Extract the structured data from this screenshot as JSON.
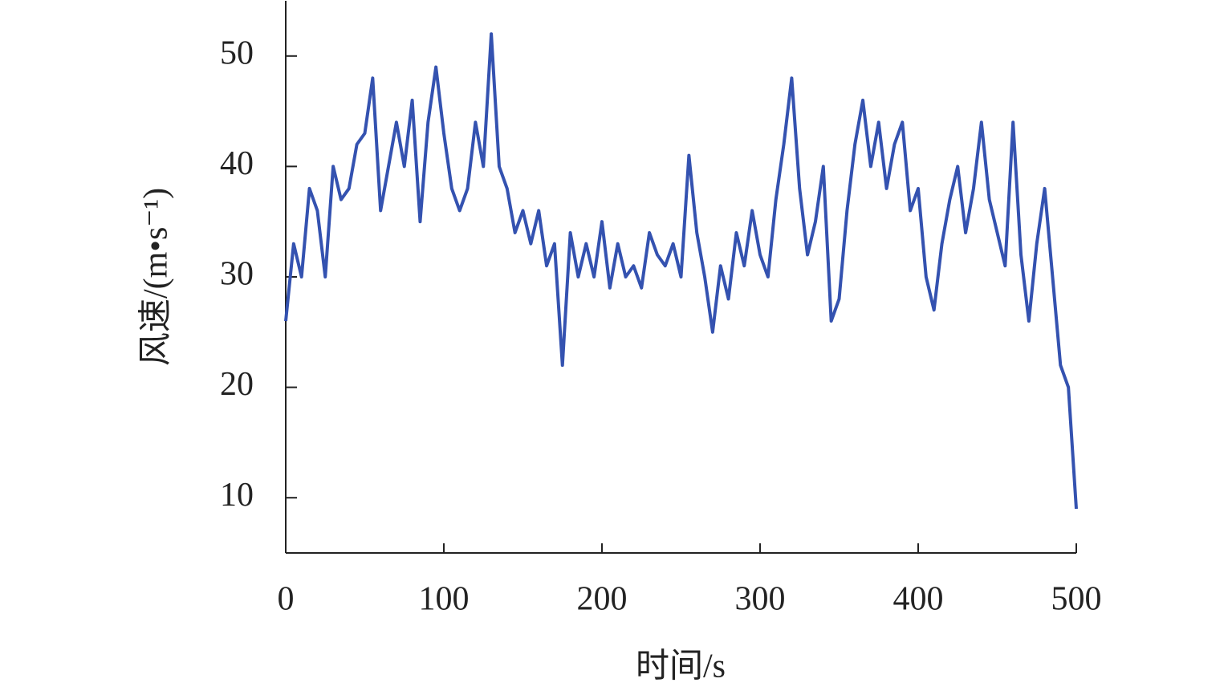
{
  "chart_data": {
    "type": "line",
    "xlabel": "时间/s",
    "ylabel": "风速/(m•s⁻¹)",
    "x": [
      0,
      5,
      10,
      15,
      20,
      25,
      30,
      35,
      40,
      45,
      50,
      55,
      60,
      65,
      70,
      75,
      80,
      85,
      90,
      95,
      100,
      105,
      110,
      115,
      120,
      125,
      130,
      135,
      140,
      145,
      150,
      155,
      160,
      165,
      170,
      175,
      180,
      185,
      190,
      195,
      200,
      205,
      210,
      215,
      220,
      225,
      230,
      235,
      240,
      245,
      250,
      255,
      260,
      265,
      270,
      275,
      280,
      285,
      290,
      295,
      300,
      305,
      310,
      315,
      320,
      325,
      330,
      335,
      340,
      345,
      350,
      355,
      360,
      365,
      370,
      375,
      380,
      385,
      390,
      395,
      400,
      405,
      410,
      415,
      420,
      425,
      430,
      435,
      440,
      445,
      450,
      455,
      460,
      465,
      470,
      475,
      480,
      485,
      490,
      495,
      500
    ],
    "series": [
      {
        "color": "#3452b0",
        "values": [
          26,
          33,
          30,
          38,
          36,
          30,
          40,
          37,
          38,
          42,
          43,
          48,
          36,
          40,
          44,
          40,
          46,
          35,
          44,
          49,
          43,
          38,
          36,
          38,
          44,
          40,
          52,
          40,
          38,
          34,
          36,
          33,
          36,
          31,
          33,
          22,
          34,
          30,
          33,
          30,
          35,
          29,
          33,
          30,
          31,
          29,
          34,
          32,
          31,
          33,
          30,
          41,
          34,
          30,
          25,
          31,
          28,
          34,
          31,
          36,
          32,
          30,
          37,
          42,
          48,
          38,
          32,
          35,
          40,
          26,
          28,
          36,
          42,
          46,
          40,
          44,
          38,
          42,
          44,
          36,
          38,
          30,
          27,
          33,
          37,
          40,
          34,
          38,
          44,
          37,
          34,
          31,
          44,
          32,
          26,
          33,
          38,
          30,
          22,
          20,
          9
        ]
      }
    ],
    "xlim": [
      0,
      500
    ],
    "xticks": [
      0,
      100,
      200,
      300,
      400,
      500
    ],
    "ylim": [
      5,
      55
    ],
    "yticks": [
      10,
      20,
      30,
      40,
      50
    ]
  }
}
